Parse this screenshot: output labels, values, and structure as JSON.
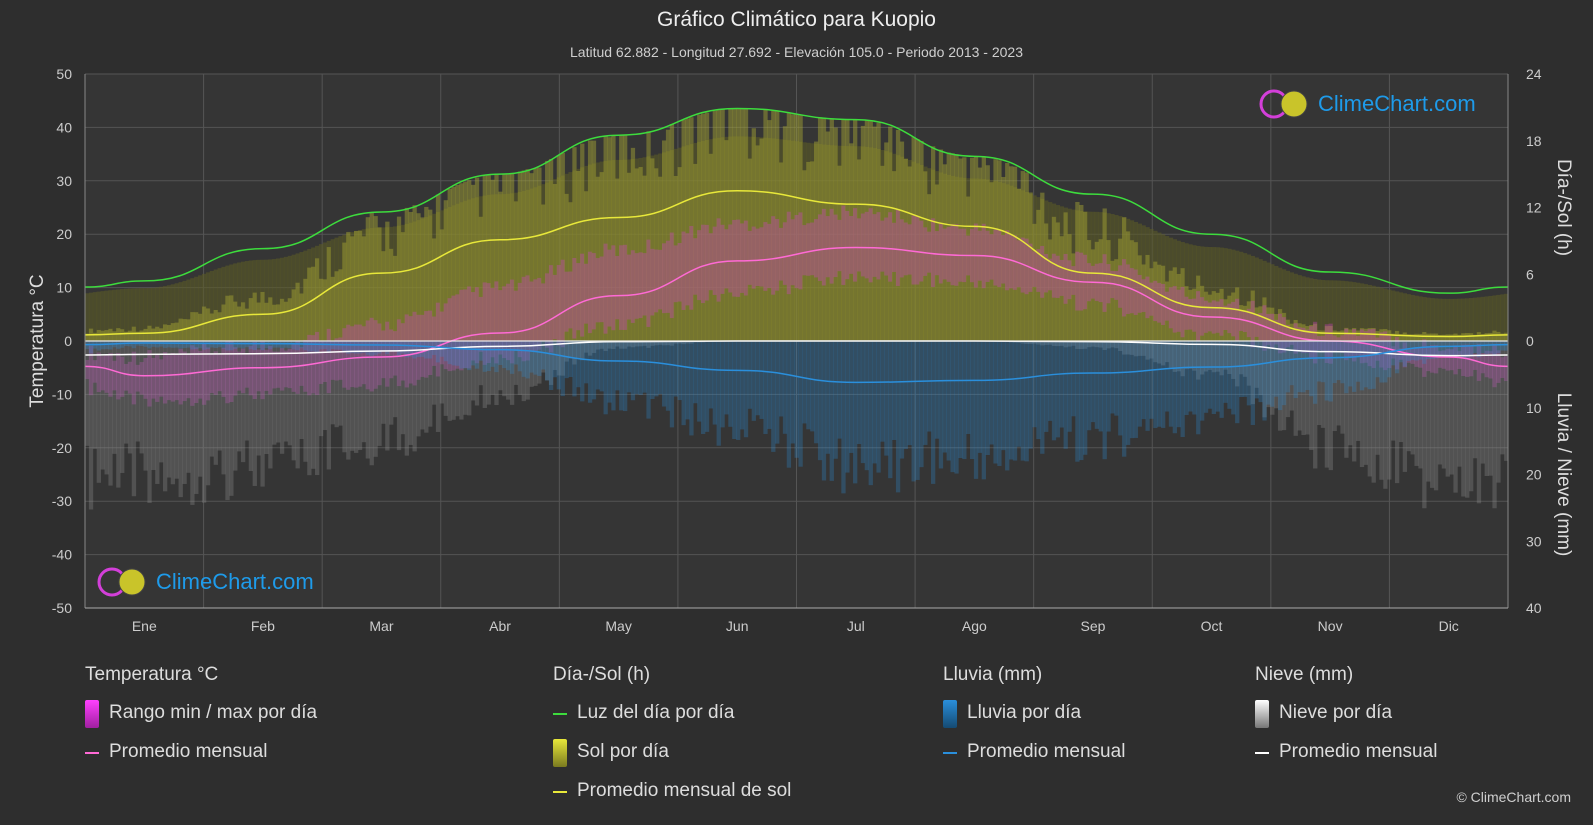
{
  "header": {
    "title": "Gráfico Climático para Kuopio",
    "subtitle": "Latitud 62.882 - Longitud 27.692 - Elevación 105.0 - Periodo 2013 - 2023"
  },
  "logo_text": "ClimeChart.com",
  "copyright": "© ClimeChart.com",
  "chart_data": {
    "type": "area",
    "months": [
      "Ene",
      "Feb",
      "Mar",
      "Abr",
      "May",
      "Jun",
      "Jul",
      "Ago",
      "Sep",
      "Oct",
      "Nov",
      "Dic"
    ],
    "y_left": {
      "label": "Temperatura °C",
      "range": [
        -50,
        50
      ],
      "ticks": [
        50,
        40,
        30,
        20,
        10,
        0,
        -10,
        -20,
        -30,
        -40,
        -50
      ]
    },
    "y_right_top": {
      "label": "Día-/Sol (h)",
      "range": [
        0,
        24
      ],
      "ticks": [
        24,
        18,
        12,
        6,
        0
      ]
    },
    "y_right_bottom": {
      "label": "Lluvia / Nieve (mm)",
      "range": [
        0,
        40
      ],
      "ticks": [
        0,
        10,
        20,
        30,
        40
      ]
    },
    "grid": true,
    "series": [
      {
        "name": "Luz del día por día",
        "axis": "hours",
        "color": "#3ddc3d",
        "values": [
          5.4,
          8.3,
          11.6,
          15.0,
          18.5,
          20.9,
          19.9,
          16.6,
          13.2,
          9.6,
          6.2,
          4.3
        ]
      },
      {
        "name": "Promedio mensual de sol",
        "axis": "hours",
        "color": "#e8e83a",
        "values": [
          0.7,
          2.4,
          6.1,
          9.1,
          11.1,
          13.5,
          12.3,
          10.3,
          6.1,
          3.0,
          0.7,
          0.4
        ]
      },
      {
        "name": "Promedio mensual",
        "group": "Temperatura °C",
        "axis": "temp",
        "color": "#ff6ad5",
        "values": [
          -6.5,
          -5.0,
          -3.0,
          1.5,
          8.5,
          15.0,
          17.5,
          16.0,
          11.0,
          4.5,
          0.0,
          -3.0
        ]
      },
      {
        "name": "Promedio mensual",
        "group": "Lluvia (mm)",
        "axis": "precip",
        "color": "#2a8fdc",
        "values": [
          0.3,
          0.4,
          0.6,
          1.3,
          3.0,
          4.4,
          6.2,
          5.9,
          4.8,
          3.9,
          2.5,
          0.8
        ]
      },
      {
        "name": "Promedio mensual",
        "group": "Nieve (mm)",
        "axis": "precip",
        "color": "#ffffff",
        "values": [
          2.0,
          1.9,
          1.5,
          0.8,
          0.1,
          0.0,
          0.0,
          0.0,
          0.1,
          0.5,
          1.6,
          2.2
        ]
      }
    ],
    "temp_range": {
      "name": "Rango min / max por día",
      "max": [
        -3,
        -1,
        3,
        10,
        17,
        22,
        24,
        21,
        15,
        8,
        2,
        -1
      ],
      "min": [
        -11,
        -10,
        -8,
        -3,
        3,
        9,
        12,
        11,
        7,
        1,
        -3,
        -6
      ]
    },
    "sun_daily": {
      "name": "Sol por día"
    },
    "rain_daily": {
      "name": "Lluvia por día"
    },
    "snow_daily": {
      "name": "Nieve por día"
    }
  },
  "legend": {
    "temp": {
      "title": "Temperatura °C",
      "range": "Rango min / max por día",
      "avg": "Promedio mensual"
    },
    "sun": {
      "title": "Día-/Sol (h)",
      "daylight": "Luz del día por día",
      "sun": "Sol por día",
      "sun_avg": "Promedio mensual de sol"
    },
    "rain": {
      "title": "Lluvia (mm)",
      "daily": "Lluvia por día",
      "avg": "Promedio mensual"
    },
    "snow": {
      "title": "Nieve (mm)",
      "daily": "Nieve por día",
      "avg": "Promedio mensual"
    }
  },
  "colors": {
    "background": "#2e2e2e",
    "grid": "#555555",
    "daylight": "#3ddc3d",
    "sun": "#e8e83a",
    "temp": "#ff6ad5",
    "temp_range": "#d040c8",
    "rain": "#2a8fdc",
    "snow": "#ffffff"
  }
}
